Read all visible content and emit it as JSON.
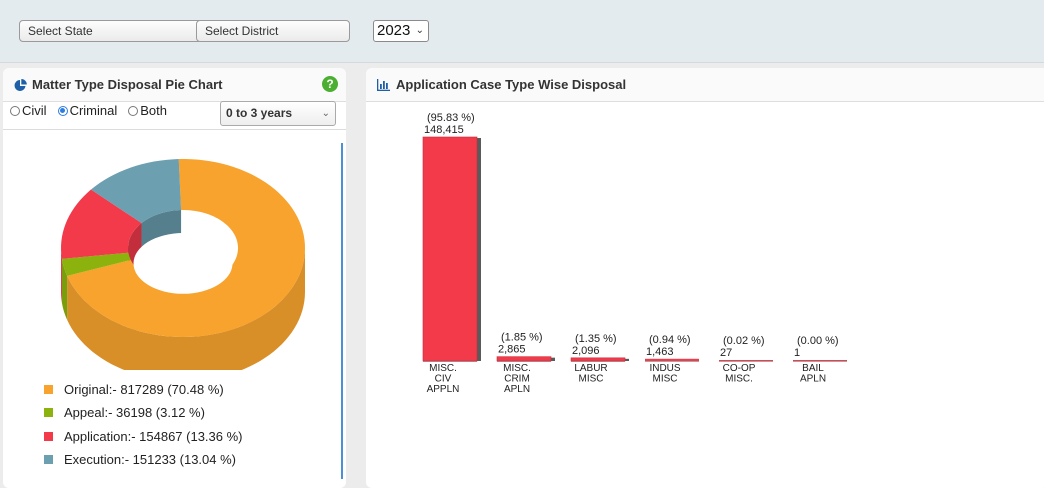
{
  "filters": {
    "state_label": "Select State",
    "district_label": "Select District",
    "year_value": "2023"
  },
  "left_panel": {
    "title": "Matter Type Disposal Pie Chart",
    "help_icon": "help-icon",
    "radio_options": [
      {
        "label": "Civil",
        "selected": false
      },
      {
        "label": "Criminal",
        "selected": true
      },
      {
        "label": "Both",
        "selected": false
      }
    ],
    "range_value": "0 to 3 years"
  },
  "right_panel": {
    "title": "Application Case Type Wise Disposal"
  },
  "chart_data": [
    {
      "type": "pie",
      "style": "3d-donut",
      "legend_position": "bottom",
      "categories": [
        "Original",
        "Appeal",
        "Application",
        "Execution"
      ],
      "values": [
        817289,
        36198,
        154867,
        151233
      ],
      "percents": [
        70.48,
        3.12,
        13.36,
        13.04
      ],
      "colors": [
        "#f7a32d",
        "#8bb20d",
        "#f23a4b",
        "#6c9fb0"
      ],
      "legend_labels": [
        "Original:- 817289 (70.48 %)",
        "Appeal:- 36198 (3.12 %)",
        "Application:- 154867 (13.36 %)",
        "Execution:- 151233 (13.04 %)"
      ]
    },
    {
      "type": "bar",
      "categories": [
        [
          "MISC.",
          "CIV",
          "APPLN"
        ],
        [
          "MISC.",
          "CRIM",
          "APLN"
        ],
        [
          "LABUR",
          "MISC"
        ],
        [
          "INDUS",
          "MISC"
        ],
        [
          "CO-OP",
          "MISC."
        ],
        [
          "BAIL",
          "APLN"
        ]
      ],
      "values": [
        148415,
        2865,
        2096,
        1463,
        27,
        1
      ],
      "value_labels": [
        "148,415",
        "2,865",
        "2,096",
        "1,463",
        "27",
        "1"
      ],
      "percent_labels": [
        "(95.83 %)",
        "(1.85 %)",
        "(1.35 %)",
        "(0.94 %)",
        "(0.02 %)",
        "(0.00 %)"
      ],
      "bar_color": "#f23a4b",
      "ylim": [
        0,
        148415
      ],
      "grid": false
    }
  ]
}
